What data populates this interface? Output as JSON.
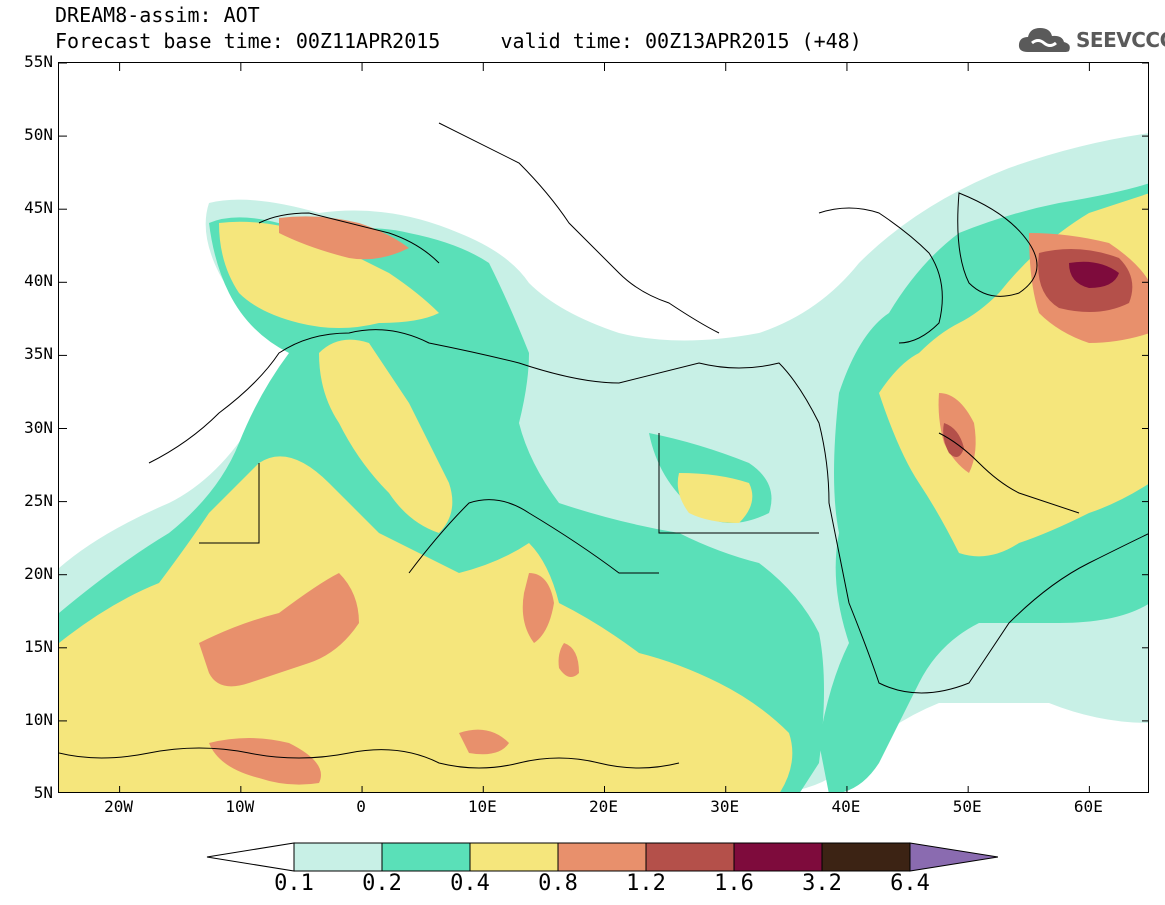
{
  "header": {
    "title": "DREAM8-assim: AOT",
    "subtitle": "Forecast base time: 00Z11APR2015     valid time: 00Z13APR2015 (+48)",
    "logo_text": "SEEVCCC",
    "logo_icon": "cloud-icon"
  },
  "map": {
    "lon_range": [
      -25,
      65
    ],
    "lat_range": [
      5,
      55
    ],
    "lat_labels": [
      "55N",
      "50N",
      "45N",
      "40N",
      "35N",
      "30N",
      "25N",
      "20N",
      "15N",
      "10N",
      "5N"
    ],
    "lon_labels": [
      "20W",
      "10W",
      "0",
      "10E",
      "20E",
      "30E",
      "40E",
      "50E",
      "60E"
    ],
    "projection": "cylindrical equidistant",
    "coastline_color": "#000000"
  },
  "legend": {
    "thresholds": [
      "0.1",
      "0.2",
      "0.4",
      "0.8",
      "1.2",
      "1.6",
      "3.2",
      "6.4"
    ],
    "colors": [
      "#ffffff",
      "#c8f0e6",
      "#5ae0b8",
      "#f5e67c",
      "#e8906c",
      "#b4504a",
      "#7e0b3c",
      "#3c2314",
      "#8a6bb0"
    ]
  }
}
